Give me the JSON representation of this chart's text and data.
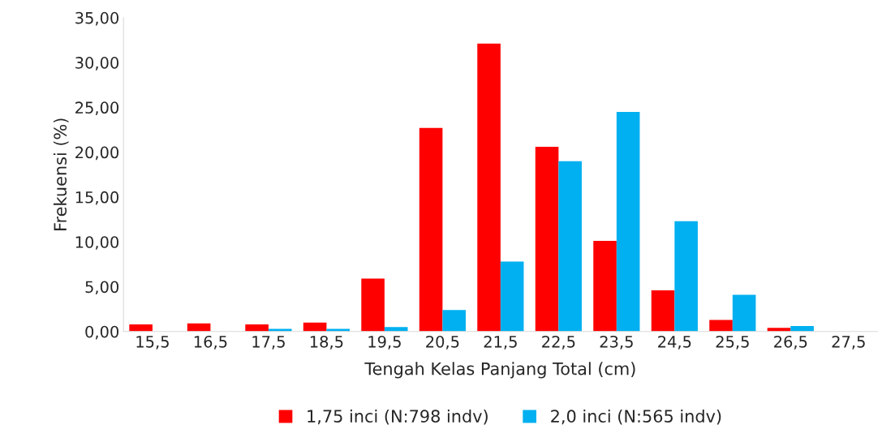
{
  "chart_data": {
    "type": "bar",
    "xlabel": "Tengah Kelas Panjang Total (cm)",
    "ylabel": "Frekuensi (%)",
    "categories": [
      "15,5",
      "16,5",
      "17,5",
      "18,5",
      "19,5",
      "20,5",
      "21,5",
      "22,5",
      "23,5",
      "24,5",
      "25,5",
      "26,5",
      "27,5"
    ],
    "series": [
      {
        "name": "1,75 inci (N:798 indv)",
        "color": "#ff0000",
        "values": [
          0.8,
          0.9,
          0.8,
          1.0,
          5.9,
          22.7,
          32.1,
          20.6,
          10.1,
          4.6,
          1.3,
          0.4,
          0
        ]
      },
      {
        "name": "2,0 inci (N:565 indv)",
        "color": "#00b0f0",
        "values": [
          0,
          0,
          0.3,
          0.3,
          0.5,
          2.4,
          7.8,
          19.0,
          24.5,
          12.3,
          4.1,
          0.6,
          0
        ]
      }
    ],
    "ylim": [
      0,
      35
    ],
    "yticks": [
      {
        "value": 0,
        "label": "0,00"
      },
      {
        "value": 5,
        "label": "5,00"
      },
      {
        "value": 10,
        "label": "10,00"
      },
      {
        "value": 15,
        "label": "15,00"
      },
      {
        "value": 20,
        "label": "20,00"
      },
      {
        "value": 25,
        "label": "25,00"
      },
      {
        "value": 30,
        "label": "30,00"
      },
      {
        "value": 35,
        "label": "35,00"
      }
    ],
    "grid": false,
    "legend": "bottom"
  }
}
